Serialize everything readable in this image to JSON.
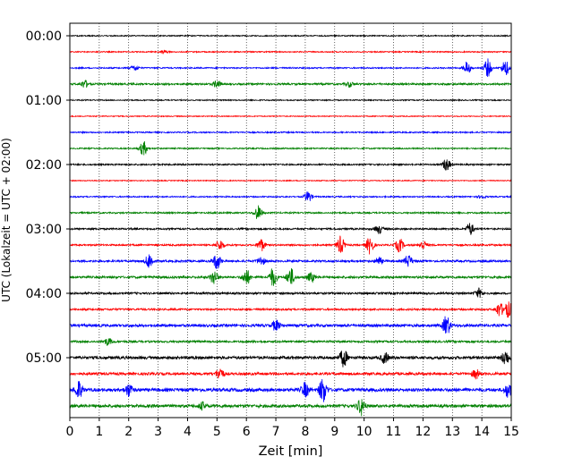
{
  "chart_data": {
    "type": "line",
    "title": "",
    "xlabel": "Zeit  [min]",
    "ylabel": "UTC (Lokalzeit = UTC + 02:00)",
    "xlim": [
      0,
      15
    ],
    "x_ticks": [
      "0",
      "1",
      "2",
      "3",
      "4",
      "5",
      "6",
      "7",
      "8",
      "9",
      "10",
      "11",
      "12",
      "13",
      "14",
      "15"
    ],
    "y_ticks": [
      "00:00",
      "01:00",
      "02:00",
      "03:00",
      "04:00",
      "05:00"
    ],
    "grid": "vertical dotted lines at each minute",
    "legend": "none",
    "line_minutes": 15,
    "series": [
      {
        "start": "00:00",
        "color": "#000000",
        "level": 0.6,
        "events": []
      },
      {
        "start": "00:15",
        "color": "#ff0000",
        "level": 0.6,
        "events": [
          [
            3.2,
            2
          ]
        ]
      },
      {
        "start": "00:30",
        "color": "#0000ff",
        "level": 0.7,
        "events": [
          [
            2.2,
            3
          ],
          [
            13.5,
            7
          ],
          [
            14.2,
            10
          ],
          [
            14.8,
            9
          ]
        ]
      },
      {
        "start": "00:45",
        "color": "#008000",
        "level": 1.0,
        "events": [
          [
            0.5,
            4
          ],
          [
            5.0,
            4
          ],
          [
            9.5,
            3
          ]
        ]
      },
      {
        "start": "01:00",
        "color": "#000000",
        "level": 0.6,
        "events": []
      },
      {
        "start": "01:15",
        "color": "#ff0000",
        "level": 0.5,
        "events": []
      },
      {
        "start": "01:30",
        "color": "#0000ff",
        "level": 0.7,
        "events": []
      },
      {
        "start": "01:45",
        "color": "#008000",
        "level": 0.7,
        "events": [
          [
            2.5,
            8
          ]
        ]
      },
      {
        "start": "02:00",
        "color": "#000000",
        "level": 0.8,
        "events": [
          [
            12.8,
            7
          ]
        ]
      },
      {
        "start": "02:15",
        "color": "#ff0000",
        "level": 0.5,
        "events": []
      },
      {
        "start": "02:30",
        "color": "#0000ff",
        "level": 0.7,
        "events": [
          [
            8.1,
            6
          ],
          [
            14.0,
            2
          ]
        ]
      },
      {
        "start": "02:45",
        "color": "#008000",
        "level": 0.8,
        "events": [
          [
            6.4,
            8
          ]
        ]
      },
      {
        "start": "03:00",
        "color": "#000000",
        "level": 0.9,
        "events": [
          [
            10.5,
            5
          ],
          [
            13.6,
            7
          ]
        ]
      },
      {
        "start": "03:15",
        "color": "#ff0000",
        "level": 0.9,
        "events": [
          [
            5.1,
            6
          ],
          [
            6.5,
            7
          ],
          [
            9.2,
            10
          ],
          [
            10.2,
            10
          ],
          [
            11.2,
            8
          ],
          [
            12.0,
            5
          ]
        ]
      },
      {
        "start": "03:30",
        "color": "#0000ff",
        "level": 1.1,
        "events": [
          [
            2.7,
            9
          ],
          [
            5.0,
            9
          ],
          [
            6.5,
            5
          ],
          [
            10.5,
            4
          ],
          [
            11.5,
            7
          ]
        ]
      },
      {
        "start": "03:45",
        "color": "#008000",
        "level": 1.2,
        "events": [
          [
            4.9,
            8
          ],
          [
            6.0,
            9
          ],
          [
            6.9,
            10
          ],
          [
            7.5,
            10
          ],
          [
            8.2,
            5
          ]
        ]
      },
      {
        "start": "04:00",
        "color": "#000000",
        "level": 1.1,
        "events": [
          [
            13.9,
            5
          ]
        ]
      },
      {
        "start": "04:15",
        "color": "#ff0000",
        "level": 1.0,
        "events": [
          [
            14.6,
            8
          ],
          [
            14.9,
            9
          ]
        ]
      },
      {
        "start": "04:30",
        "color": "#0000ff",
        "level": 1.5,
        "events": [
          [
            7.0,
            6
          ],
          [
            12.8,
            11
          ]
        ]
      },
      {
        "start": "04:45",
        "color": "#008000",
        "level": 1.1,
        "events": [
          [
            1.3,
            4
          ]
        ]
      },
      {
        "start": "05:00",
        "color": "#000000",
        "level": 1.6,
        "events": [
          [
            9.3,
            10
          ],
          [
            10.7,
            6
          ],
          [
            14.8,
            8
          ]
        ]
      },
      {
        "start": "05:15",
        "color": "#ff0000",
        "level": 1.4,
        "events": [
          [
            5.1,
            7
          ],
          [
            13.8,
            5
          ]
        ]
      },
      {
        "start": "05:30",
        "color": "#0000ff",
        "level": 1.8,
        "events": [
          [
            0.3,
            10
          ],
          [
            2.0,
            7
          ],
          [
            8.0,
            8
          ],
          [
            8.6,
            14
          ],
          [
            14.9,
            8
          ]
        ]
      },
      {
        "start": "05:45",
        "color": "#008000",
        "level": 1.6,
        "events": [
          [
            9.9,
            10
          ],
          [
            4.5,
            4
          ]
        ]
      }
    ]
  }
}
